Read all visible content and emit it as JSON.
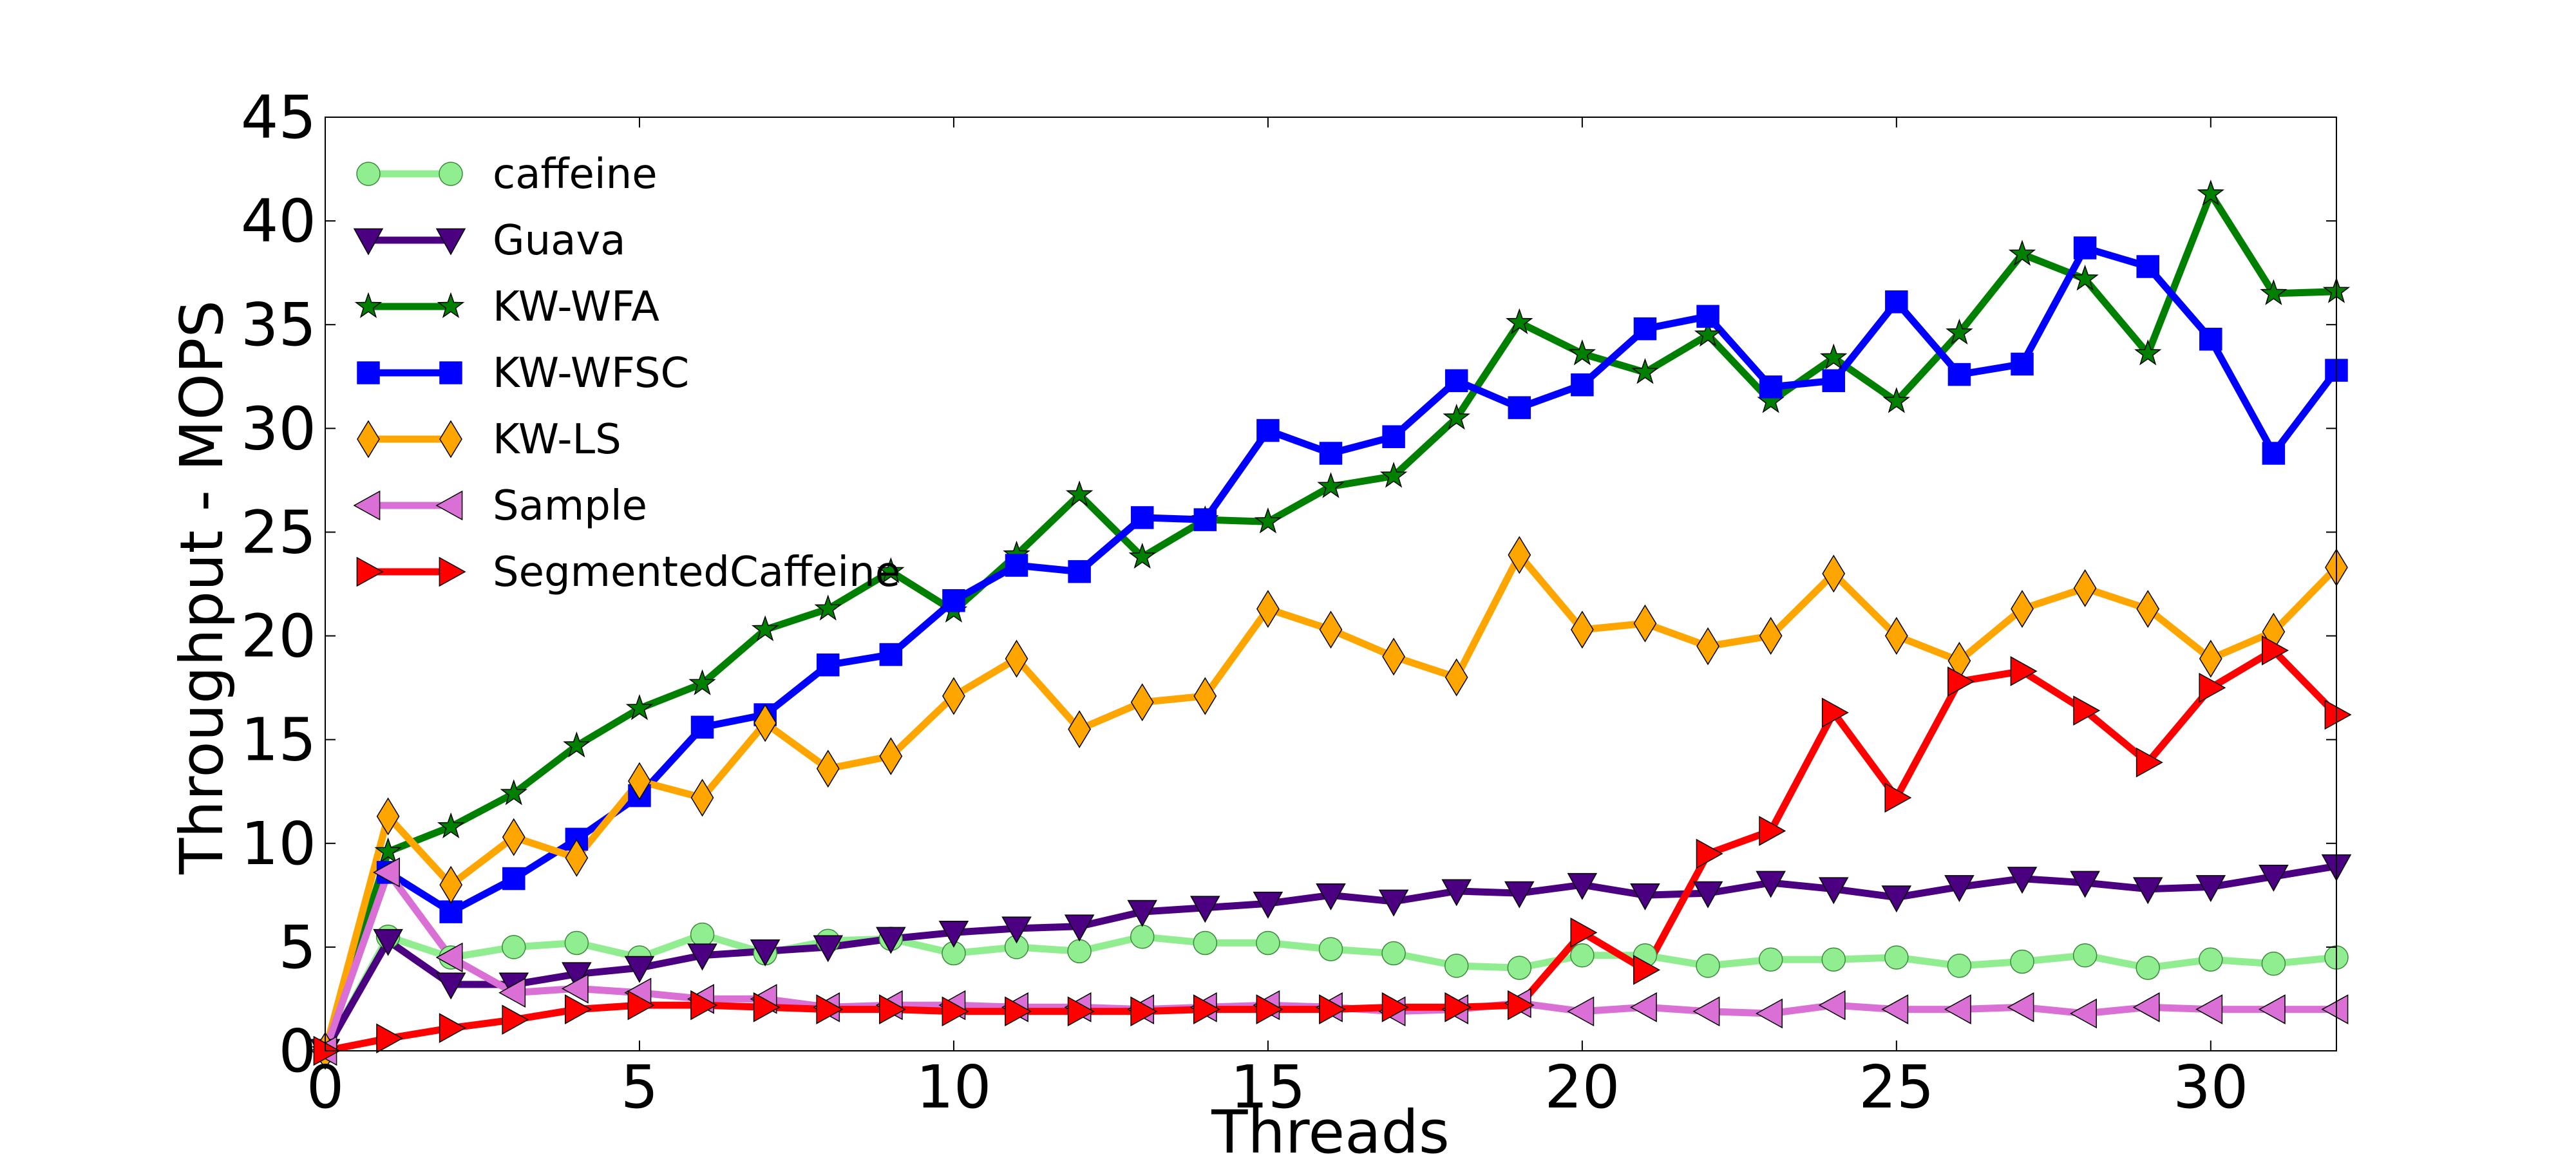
{
  "chart_data": {
    "type": "line",
    "xlabel": "Threads",
    "ylabel": "Throughput - MOPS",
    "xlim": [
      0,
      32
    ],
    "ylim": [
      0,
      45
    ],
    "xticks": [
      0,
      5,
      10,
      15,
      20,
      25,
      30
    ],
    "yticks": [
      0,
      5,
      10,
      15,
      20,
      25,
      30,
      35,
      40,
      45
    ],
    "x": [
      0,
      1,
      2,
      3,
      4,
      5,
      6,
      7,
      8,
      9,
      10,
      11,
      12,
      13,
      14,
      15,
      16,
      17,
      18,
      19,
      20,
      21,
      22,
      23,
      24,
      25,
      26,
      27,
      28,
      29,
      30,
      31,
      32
    ],
    "grid": false,
    "legend_position": "upper-left",
    "series": [
      {
        "name": "caffeine",
        "color": "#90EE90",
        "marker": "circle",
        "values": [
          0,
          5.5,
          4.5,
          5.0,
          5.2,
          4.5,
          5.6,
          4.7,
          5.3,
          5.4,
          4.7,
          5.0,
          4.8,
          5.5,
          5.2,
          5.2,
          4.9,
          4.7,
          4.1,
          4.0,
          4.6,
          4.6,
          4.1,
          4.4,
          4.4,
          4.5,
          4.1,
          4.3,
          4.6,
          4.0,
          4.4,
          4.2,
          4.5
        ]
      },
      {
        "name": "Guava",
        "color": "#4B0082",
        "marker": "triangle-down",
        "values": [
          0,
          5.3,
          3.2,
          3.2,
          3.7,
          4.0,
          4.6,
          4.8,
          5.0,
          5.4,
          5.7,
          5.9,
          6.0,
          6.7,
          6.9,
          7.1,
          7.5,
          7.2,
          7.7,
          7.6,
          8.0,
          7.5,
          7.6,
          8.1,
          7.8,
          7.4,
          7.9,
          8.3,
          8.1,
          7.8,
          7.9,
          8.4,
          8.9
        ]
      },
      {
        "name": "KW-WFA",
        "color": "#008000",
        "marker": "star",
        "values": [
          0,
          9.6,
          10.8,
          12.4,
          14.7,
          16.5,
          17.7,
          20.3,
          21.3,
          23.1,
          21.2,
          23.9,
          26.8,
          23.8,
          25.6,
          25.5,
          27.2,
          27.7,
          30.5,
          35.1,
          33.6,
          32.7,
          34.5,
          31.3,
          33.4,
          31.3,
          34.6,
          38.4,
          37.2,
          33.6,
          41.3,
          36.5,
          36.6
        ]
      },
      {
        "name": "KW-WFSC",
        "color": "#0000FF",
        "marker": "square",
        "values": [
          0,
          8.6,
          6.7,
          8.3,
          10.2,
          12.3,
          15.6,
          16.2,
          18.6,
          19.1,
          21.7,
          23.4,
          23.1,
          25.7,
          25.6,
          29.9,
          28.8,
          29.6,
          32.3,
          31.0,
          32.1,
          34.8,
          35.4,
          32.0,
          32.3,
          36.1,
          32.6,
          33.1,
          38.7,
          37.8,
          34.3,
          28.8,
          32.8
        ]
      },
      {
        "name": "KW-LS",
        "color": "#FFA500",
        "marker": "thin-diamond",
        "values": [
          0,
          11.3,
          8.0,
          10.3,
          9.3,
          13.0,
          12.2,
          15.8,
          13.6,
          14.2,
          17.1,
          18.9,
          15.5,
          16.8,
          17.1,
          21.3,
          20.3,
          19.0,
          18.0,
          23.9,
          20.3,
          20.6,
          19.5,
          20.0,
          23.0,
          20.0,
          18.8,
          21.3,
          22.3,
          21.3,
          18.9,
          20.2,
          23.3
        ]
      },
      {
        "name": "Sample",
        "color": "#DA70D6",
        "marker": "triangle-left",
        "values": [
          0,
          8.6,
          4.5,
          2.8,
          3.0,
          2.8,
          2.5,
          2.5,
          2.1,
          2.2,
          2.2,
          2.1,
          2.1,
          2.0,
          2.1,
          2.2,
          2.1,
          1.9,
          2.0,
          2.3,
          1.9,
          2.1,
          1.9,
          1.8,
          2.2,
          2.0,
          2.0,
          2.1,
          1.8,
          2.1,
          2.0,
          2.0,
          2.0
        ]
      },
      {
        "name": "SegmentedCaffeine",
        "color": "#FF0000",
        "marker": "triangle-right",
        "values": [
          0,
          0.6,
          1.1,
          1.5,
          2.0,
          2.2,
          2.2,
          2.1,
          2.0,
          2.0,
          1.9,
          1.9,
          1.9,
          1.9,
          2.0,
          2.0,
          2.0,
          2.1,
          2.1,
          2.2,
          5.7,
          3.9,
          9.5,
          10.6,
          16.3,
          12.2,
          17.8,
          18.3,
          16.4,
          13.9,
          17.5,
          19.3,
          16.2
        ]
      }
    ]
  }
}
